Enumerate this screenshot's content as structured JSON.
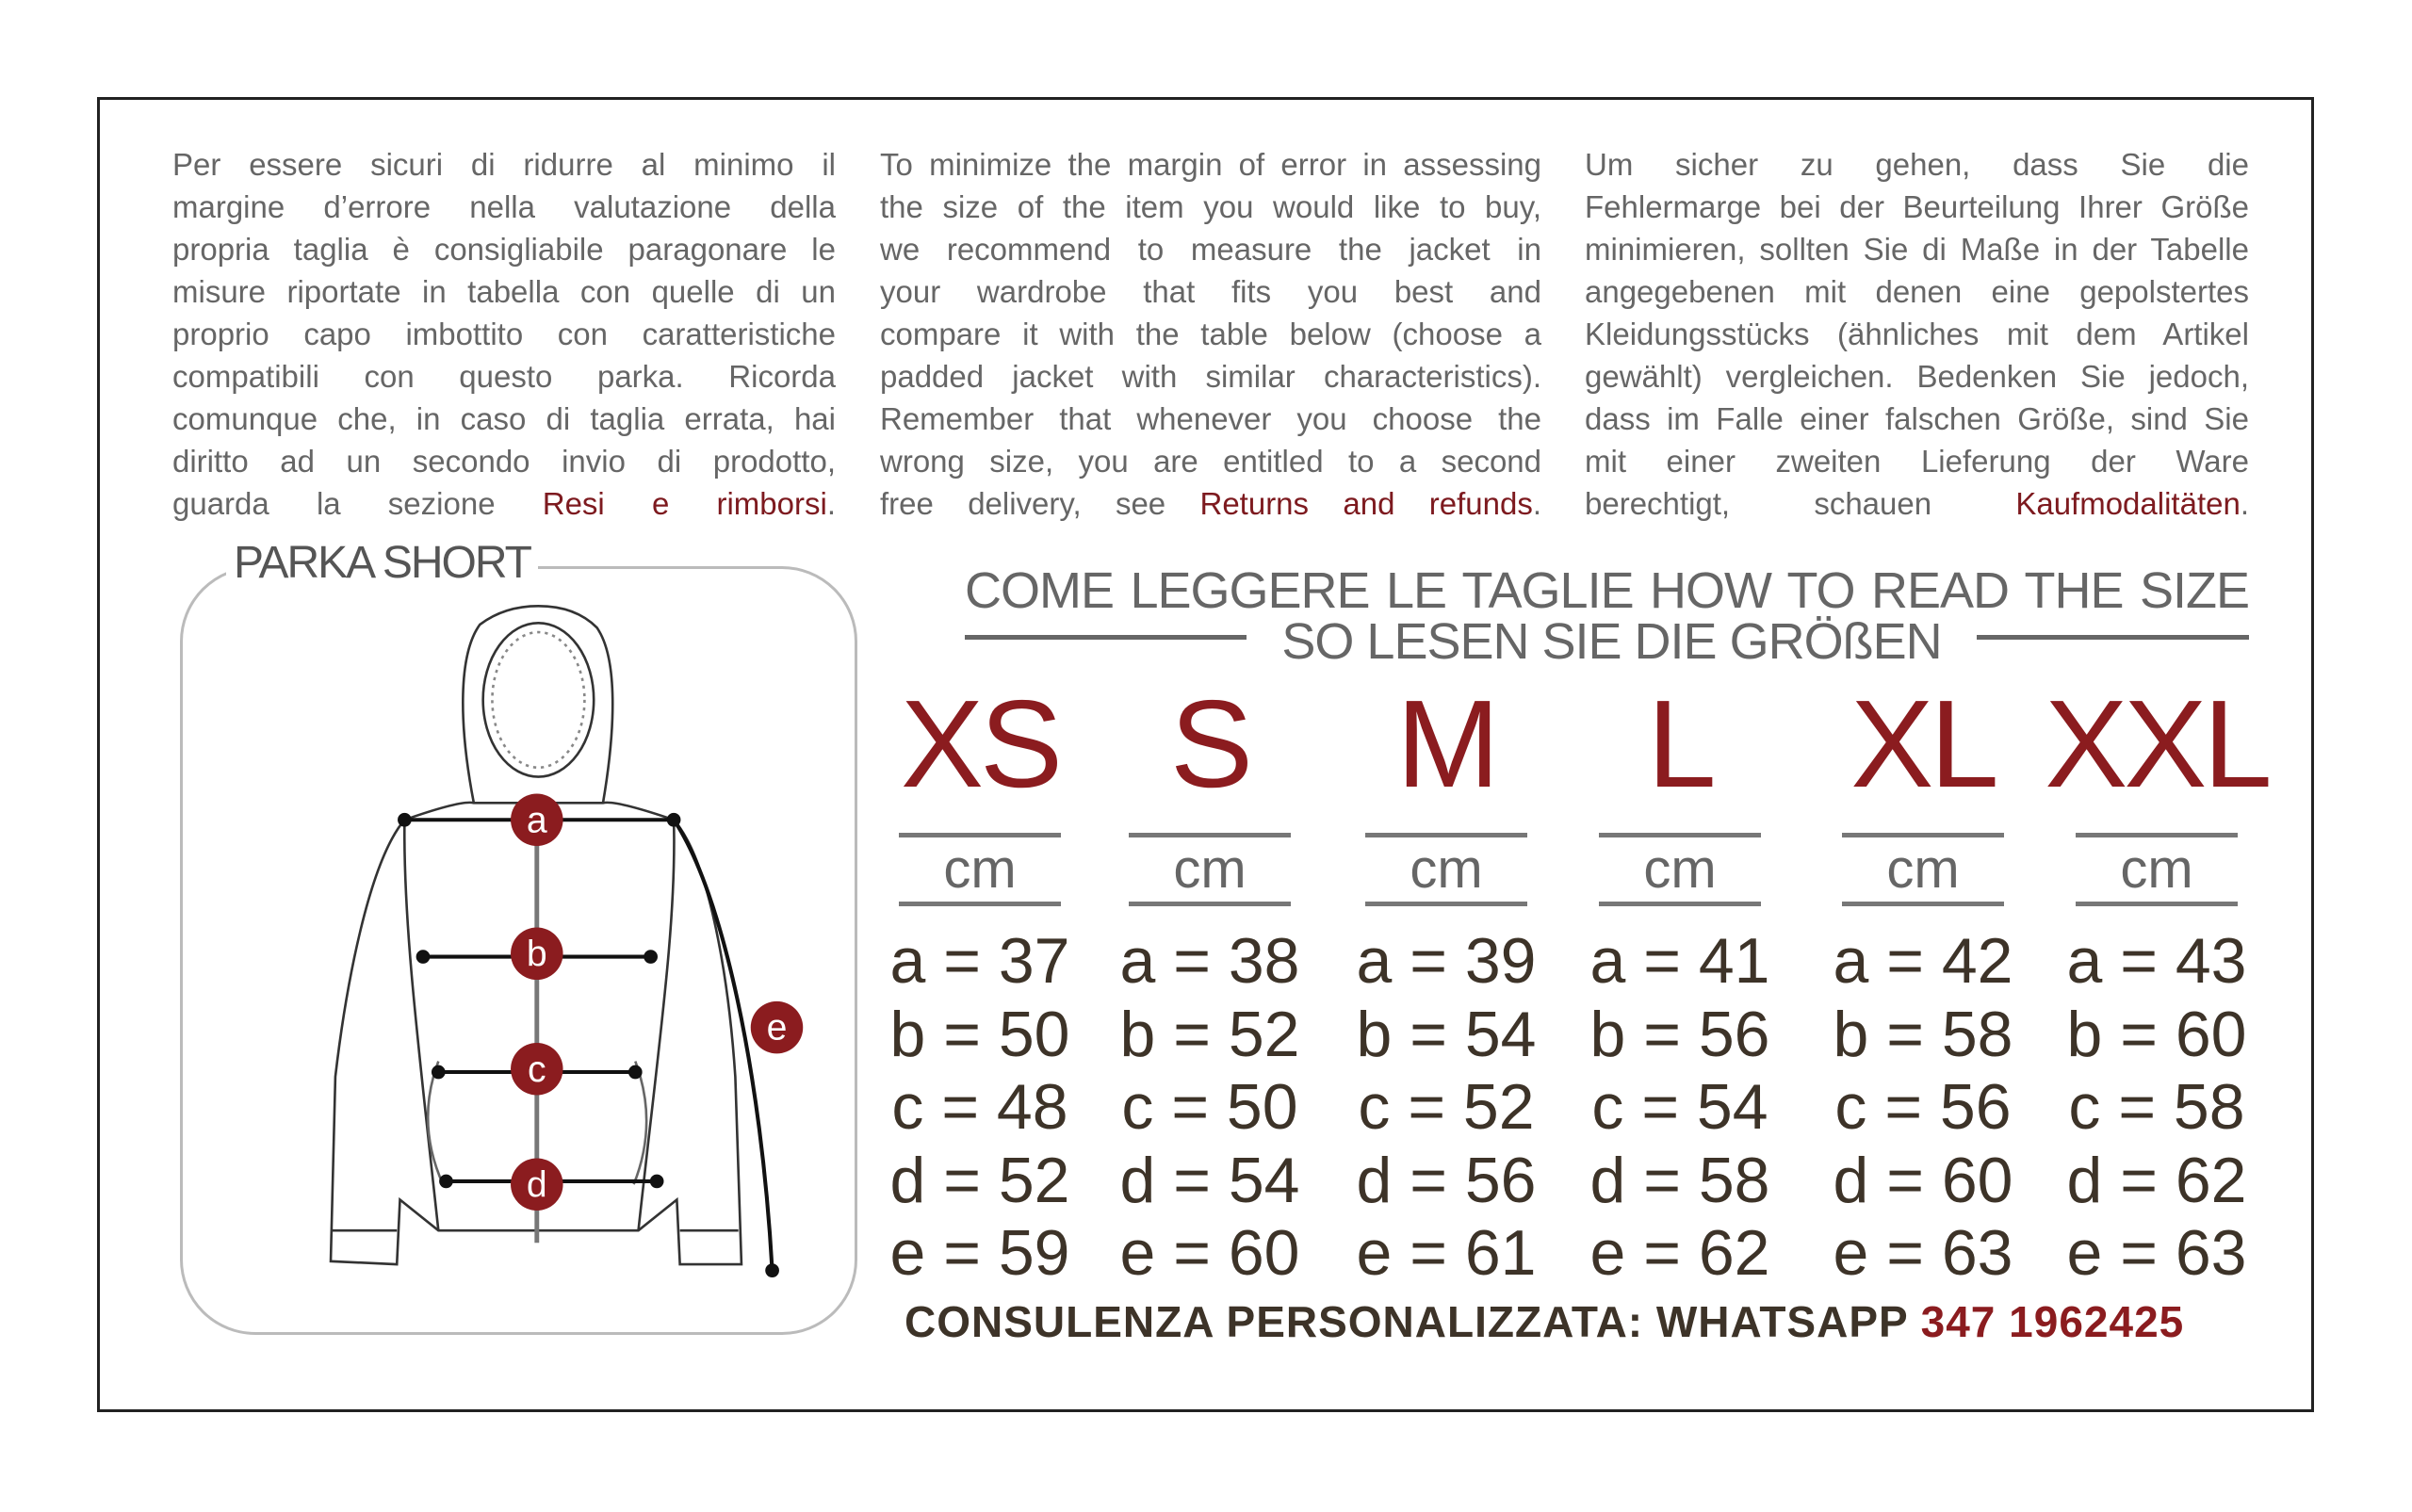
{
  "intro": {
    "it": {
      "lines": [
        "Per essere sicuri di ridurre al minimo il",
        "margine d’errore nella valutazione della",
        "propria taglia è consigliabile paragonare le",
        "misure riportate in tabella con quelle di un",
        "proprio capo imbottito con caratteristiche",
        "compatibili con questo parka. Ricorda",
        "comunque che, in caso di taglia errata, hai",
        "diritto ad un secondo invio di prodotto,"
      ],
      "last_prefix": "guarda la sezione ",
      "link": "Resi e rimborsi",
      "last_suffix": "."
    },
    "en": {
      "lines": [
        "To minimize the margin of error in assessing",
        "the size of the item you would like to buy,",
        "we recommend to measure the jacket in",
        "your wardrobe that fits you best and",
        "compare it with the table below (choose a",
        "padded jacket with similar characteristics).",
        "Remember that whenever you choose the",
        "wrong size, you are entitled to a second"
      ],
      "last_prefix": "free delivery, see ",
      "link": "Returns and refunds",
      "last_suffix": "."
    },
    "de": {
      "lines": [
        "Um sicher zu gehen, dass Sie die",
        "Fehlermarge bei der Beurteilung Ihrer Größe",
        "minimieren, sollten Sie di Maße in der Tabelle",
        "angegebenen mit denen eine gepolstertes",
        "Kleidungsstücks (ähnliches mit dem Artikel",
        "gewählt) vergleichen. Bedenken Sie jedoch,",
        "dass im Falle einer falschen Größe, sind Sie",
        "mit einer zweiten Lieferung der Ware"
      ],
      "last_prefix": "berechtigt, schauen ",
      "link": "Kaufmodalitäten",
      "last_suffix": "."
    }
  },
  "panel_title": "PARKA SHORT",
  "diagram_markers": [
    "a",
    "b",
    "c",
    "d",
    "e"
  ],
  "heading": {
    "line1": "COME LEGGERE LE TAGLIE   HOW TO READ THE SIZE",
    "line2": "SO LESEN SIE DIE GRÖßEN"
  },
  "unit": "cm",
  "sizes": [
    {
      "label": "XS",
      "measures": [
        "a = 37",
        "b = 50",
        "c = 48",
        "d = 52",
        "e = 59"
      ]
    },
    {
      "label": "S",
      "measures": [
        "a = 38",
        "b = 52",
        "c = 50",
        "d = 54",
        "e = 60"
      ]
    },
    {
      "label": "M",
      "measures": [
        "a = 39",
        "b = 54",
        "c = 52",
        "d = 56",
        "e = 61"
      ]
    },
    {
      "label": "L",
      "measures": [
        "a = 41",
        "b = 56",
        "c = 54",
        "d = 58",
        "e = 62"
      ]
    },
    {
      "label": "XL",
      "measures": [
        "a = 42",
        "b = 58",
        "c = 56",
        "d = 60",
        "e = 63"
      ]
    },
    {
      "label": "XXL",
      "measures": [
        "a = 43",
        "b = 60",
        "c = 58",
        "d = 62",
        "e = 63"
      ]
    }
  ],
  "footer": {
    "label": "CONSULENZA PERSONALIZZATA: WHATSAPP ",
    "phone": "347 1962425"
  },
  "colors": {
    "accent": "#8b1c1f",
    "text": "#666666",
    "measure_text": "#3d3328"
  }
}
